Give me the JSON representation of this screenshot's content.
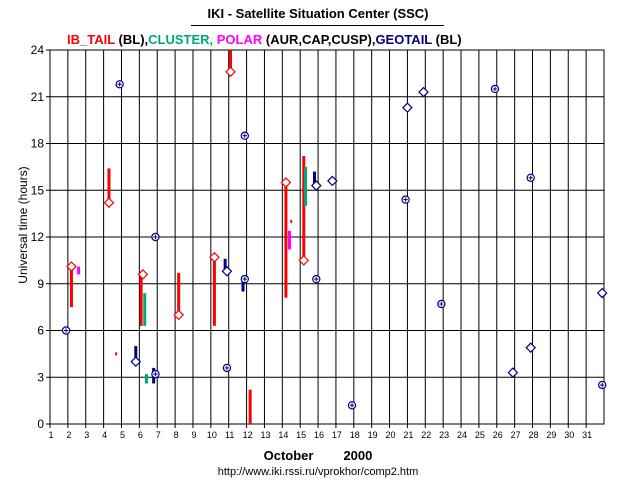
{
  "title": "IKI - Satellite Situation Center (SSC)",
  "legend": [
    {
      "text": "IB_TAIL",
      "color": "#ff0000"
    },
    {
      "text": " (BL),",
      "color": "#000000"
    },
    {
      "text": "CLUSTER,",
      "color": "#00aa77"
    },
    {
      "text": " POLAR",
      "color": "#ff00ff"
    },
    {
      "text": " (AUR,CAP,CUSP),",
      "color": "#000000"
    },
    {
      "text": "GEOTAIL",
      "color": "#000080"
    },
    {
      "text": " (BL)",
      "color": "#000000"
    }
  ],
  "xlabel_month": "October",
  "xlabel_year": "2000",
  "url": "http://www.iki.rssi.ru/vprokhor/comp2.htm",
  "chart_data": {
    "type": "scatter",
    "ylabel": "Universal time (hours)",
    "xlim": [
      1,
      32
    ],
    "ylim": [
      0,
      24
    ],
    "x_ticks": [
      1,
      2,
      3,
      4,
      5,
      6,
      7,
      8,
      9,
      10,
      11,
      12,
      13,
      14,
      15,
      16,
      17,
      18,
      19,
      20,
      21,
      22,
      23,
      24,
      25,
      26,
      27,
      28,
      29,
      30,
      31
    ],
    "y_ticks": [
      0,
      3,
      6,
      9,
      12,
      15,
      18,
      21,
      24
    ],
    "colors": {
      "ib_tail": "#ff0000",
      "cluster": "#00aa77",
      "polar": "#ff00ff",
      "geotail": "#000080",
      "marker": "#000080"
    },
    "series": [
      {
        "name": "IB_TAIL",
        "kind": "interval",
        "color": "#ff0000",
        "values": [
          [
            2.2,
            7.5,
            10.0
          ],
          [
            4.3,
            14.2,
            16.4
          ],
          [
            6.1,
            6.3,
            9.5
          ],
          [
            8.2,
            7.0,
            9.7
          ],
          [
            10.2,
            6.3,
            10.7
          ],
          [
            11.1,
            22.6,
            24.0
          ],
          [
            12.2,
            0,
            2.2
          ],
          [
            14.2,
            8.1,
            15.5
          ],
          [
            15.2,
            10.5,
            17.2
          ]
        ]
      },
      {
        "name": "CLUSTER",
        "kind": "interval",
        "color": "#00aa77",
        "values": [
          [
            6.3,
            6.3,
            8.4
          ],
          [
            6.4,
            2.6,
            3.2
          ],
          [
            15.3,
            14.0,
            16.5
          ]
        ]
      },
      {
        "name": "POLAR",
        "kind": "interval",
        "color": "#ff00ff",
        "values": [
          [
            2.6,
            9.6,
            10.1
          ],
          [
            14.4,
            11.2,
            12.4
          ]
        ]
      },
      {
        "name": "GEOTAIL",
        "kind": "interval",
        "color": "#000080",
        "values": [
          [
            5.8,
            4.1,
            5.0
          ],
          [
            6.8,
            2.6,
            3.6
          ],
          [
            10.8,
            9.8,
            10.6
          ],
          [
            11.8,
            8.5,
            9.5
          ],
          [
            15.8,
            15.4,
            16.2
          ]
        ]
      },
      {
        "name": "",
        "kind": "diamond",
        "color": "#ff0000",
        "values": [
          [
            2.2,
            10.1
          ],
          [
            4.3,
            14.2
          ],
          [
            6.2,
            9.6
          ],
          [
            8.2,
            7.0
          ],
          [
            10.2,
            10.7
          ],
          [
            11.1,
            22.6
          ],
          [
            14.2,
            15.5
          ],
          [
            15.2,
            10.5
          ]
        ]
      },
      {
        "name": "",
        "kind": "diamond",
        "color": "#000080",
        "values": [
          [
            5.8,
            4.0
          ],
          [
            10.9,
            9.8
          ],
          [
            15.9,
            15.3
          ],
          [
            16.8,
            15.6
          ],
          [
            21.0,
            20.3
          ],
          [
            21.9,
            21.3
          ],
          [
            26.9,
            3.3
          ],
          [
            27.9,
            4.9
          ],
          [
            31.9,
            8.4
          ]
        ]
      },
      {
        "name": "",
        "kind": "circleplus",
        "color": "#000080",
        "values": [
          [
            1.9,
            6.0
          ],
          [
            4.9,
            21.8
          ],
          [
            6.9,
            12.0
          ],
          [
            6.9,
            3.2
          ],
          [
            10.9,
            3.6
          ],
          [
            11.9,
            18.5
          ],
          [
            11.9,
            9.3
          ],
          [
            15.9,
            9.3
          ],
          [
            17.9,
            1.2
          ],
          [
            20.9,
            14.4
          ],
          [
            22.9,
            7.7
          ],
          [
            25.9,
            21.5
          ],
          [
            27.9,
            15.8
          ],
          [
            31.9,
            2.5
          ]
        ]
      },
      {
        "name": "",
        "kind": "dot",
        "color": "#ff0000",
        "values": [
          [
            4.7,
            4.5
          ],
          [
            14.5,
            13.0
          ]
        ]
      }
    ]
  }
}
